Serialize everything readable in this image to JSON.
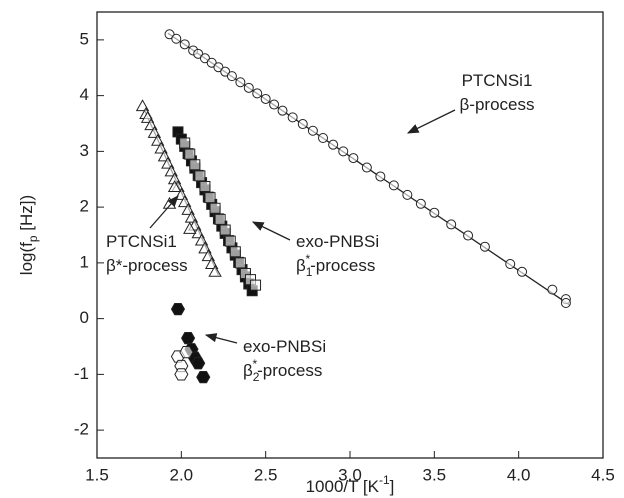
{
  "chart_data": {
    "type": "scatter",
    "x_label": [
      "1000/T [K",
      "-1",
      "]"
    ],
    "y_label": [
      "log(f",
      "p",
      " [Hz])"
    ],
    "xlim": [
      1.5,
      4.5
    ],
    "ylim": [
      -2.5,
      5.5
    ],
    "xticks": [
      {
        "value": 1.5,
        "label": "1.5"
      },
      {
        "value": 2,
        "label": "2.0"
      },
      {
        "value": 2.5,
        "label": "2.5"
      },
      {
        "value": 3,
        "label": "3.0"
      },
      {
        "value": 3.5,
        "label": "3.5"
      },
      {
        "value": 4,
        "label": "4.0"
      },
      {
        "value": 4.5,
        "label": "4.5"
      }
    ],
    "yticks": [
      -2,
      -1,
      0,
      1,
      2,
      3,
      4,
      5
    ],
    "series": [
      {
        "marker": "circle",
        "filled": false,
        "x": [
          1.93,
          1.97,
          2.02,
          2.07,
          2.1,
          2.14,
          2.18,
          2.22,
          2.26,
          2.3,
          2.35,
          2.4,
          2.45,
          2.5,
          2.55,
          2.6,
          2.66,
          2.72,
          2.78,
          2.84,
          2.9,
          2.96,
          3.02,
          3.1,
          3.18,
          3.26,
          3.34,
          3.42,
          3.5,
          3.6,
          3.7,
          3.8,
          3.95,
          4.02,
          4.2,
          4.28,
          4.28
        ],
        "values": [
          5.1,
          5.02,
          4.92,
          4.81,
          4.75,
          4.67,
          4.59,
          4.51,
          4.43,
          4.35,
          4.24,
          4.14,
          4.04,
          3.94,
          3.84,
          3.73,
          3.61,
          3.49,
          3.37,
          3.24,
          3.12,
          3.0,
          2.88,
          2.71,
          2.55,
          2.39,
          2.22,
          2.06,
          1.9,
          1.69,
          1.49,
          1.29,
          0.98,
          0.84,
          0.52,
          0.35,
          0.28
        ]
      },
      {
        "marker": "triangle",
        "filled": false,
        "x": [
          1.77,
          1.79,
          1.8,
          1.82,
          1.84,
          1.86,
          1.88,
          1.9,
          1.92,
          1.94,
          1.96,
          1.98,
          2.0,
          2.02,
          2.04,
          2.06,
          2.08,
          2.1,
          2.12,
          2.14,
          2.16,
          2.18,
          2.2,
          1.93,
          1.96,
          2.05
        ],
        "values": [
          3.8,
          3.66,
          3.59,
          3.46,
          3.32,
          3.18,
          3.04,
          2.9,
          2.77,
          2.63,
          2.49,
          2.35,
          2.21,
          2.08,
          1.94,
          1.8,
          1.66,
          1.52,
          1.39,
          1.25,
          1.11,
          0.97,
          0.83,
          2.05,
          2.35,
          1.6
        ]
      },
      {
        "marker": "square",
        "filled": true,
        "x": [
          1.98,
          2.0,
          2.02,
          2.04,
          2.06,
          2.08,
          2.1,
          2.12,
          2.14,
          2.16,
          2.18,
          2.2,
          2.22,
          2.24,
          2.26,
          2.28,
          2.3,
          2.32,
          2.34,
          2.36,
          2.38,
          2.4,
          2.42
        ],
        "values": [
          3.35,
          3.22,
          3.09,
          2.96,
          2.83,
          2.7,
          2.57,
          2.44,
          2.31,
          2.18,
          2.05,
          1.92,
          1.79,
          1.66,
          1.53,
          1.4,
          1.27,
          1.14,
          1.01,
          0.88,
          0.75,
          0.62,
          0.5
        ]
      },
      {
        "marker": "square",
        "filled": false,
        "x": [
          2.02,
          2.05,
          2.08,
          2.11,
          2.14,
          2.17,
          2.2,
          2.23,
          2.26,
          2.29,
          2.32,
          2.35,
          2.38,
          2.41,
          2.44
        ],
        "values": [
          3.15,
          2.95,
          2.76,
          2.56,
          2.37,
          2.17,
          1.98,
          1.78,
          1.59,
          1.39,
          1.2,
          1.0,
          0.81,
          0.7,
          0.6
        ]
      },
      {
        "marker": "hexagon",
        "filled": true,
        "x": [
          1.98,
          2.04,
          2.06,
          2.08,
          2.1,
          2.13
        ],
        "values": [
          0.17,
          -0.35,
          -0.55,
          -0.7,
          -0.8,
          -1.05
        ]
      },
      {
        "marker": "hexagon",
        "filled": false,
        "x": [
          1.98,
          2.0,
          2.0,
          2.03
        ],
        "values": [
          -0.68,
          -0.85,
          -1.0,
          -0.6
        ]
      }
    ],
    "fit_lines": [
      {
        "x": [
          1.92,
          4.3
        ],
        "values": [
          5.12,
          0.25
        ]
      },
      {
        "x": [
          1.78,
          2.22
        ],
        "values": [
          3.75,
          0.78
        ]
      },
      {
        "x": [
          1.98,
          2.42
        ],
        "values": [
          3.35,
          0.5
        ]
      }
    ],
    "annotations": [
      {
        "lines": [
          [
            "PTCNSi1"
          ],
          [
            "β-process"
          ]
        ]
      },
      {
        "lines": [
          [
            "PTCNSi1"
          ],
          [
            "β*-process"
          ]
        ]
      },
      {
        "lines": [
          [
            "exo-PNBSi"
          ],
          [
            "β",
            "1",
            "*",
            "-process"
          ]
        ]
      },
      {
        "lines": [
          [
            "exo-PNBSi"
          ],
          [
            "β",
            "2",
            "*",
            "-process"
          ]
        ]
      }
    ]
  }
}
